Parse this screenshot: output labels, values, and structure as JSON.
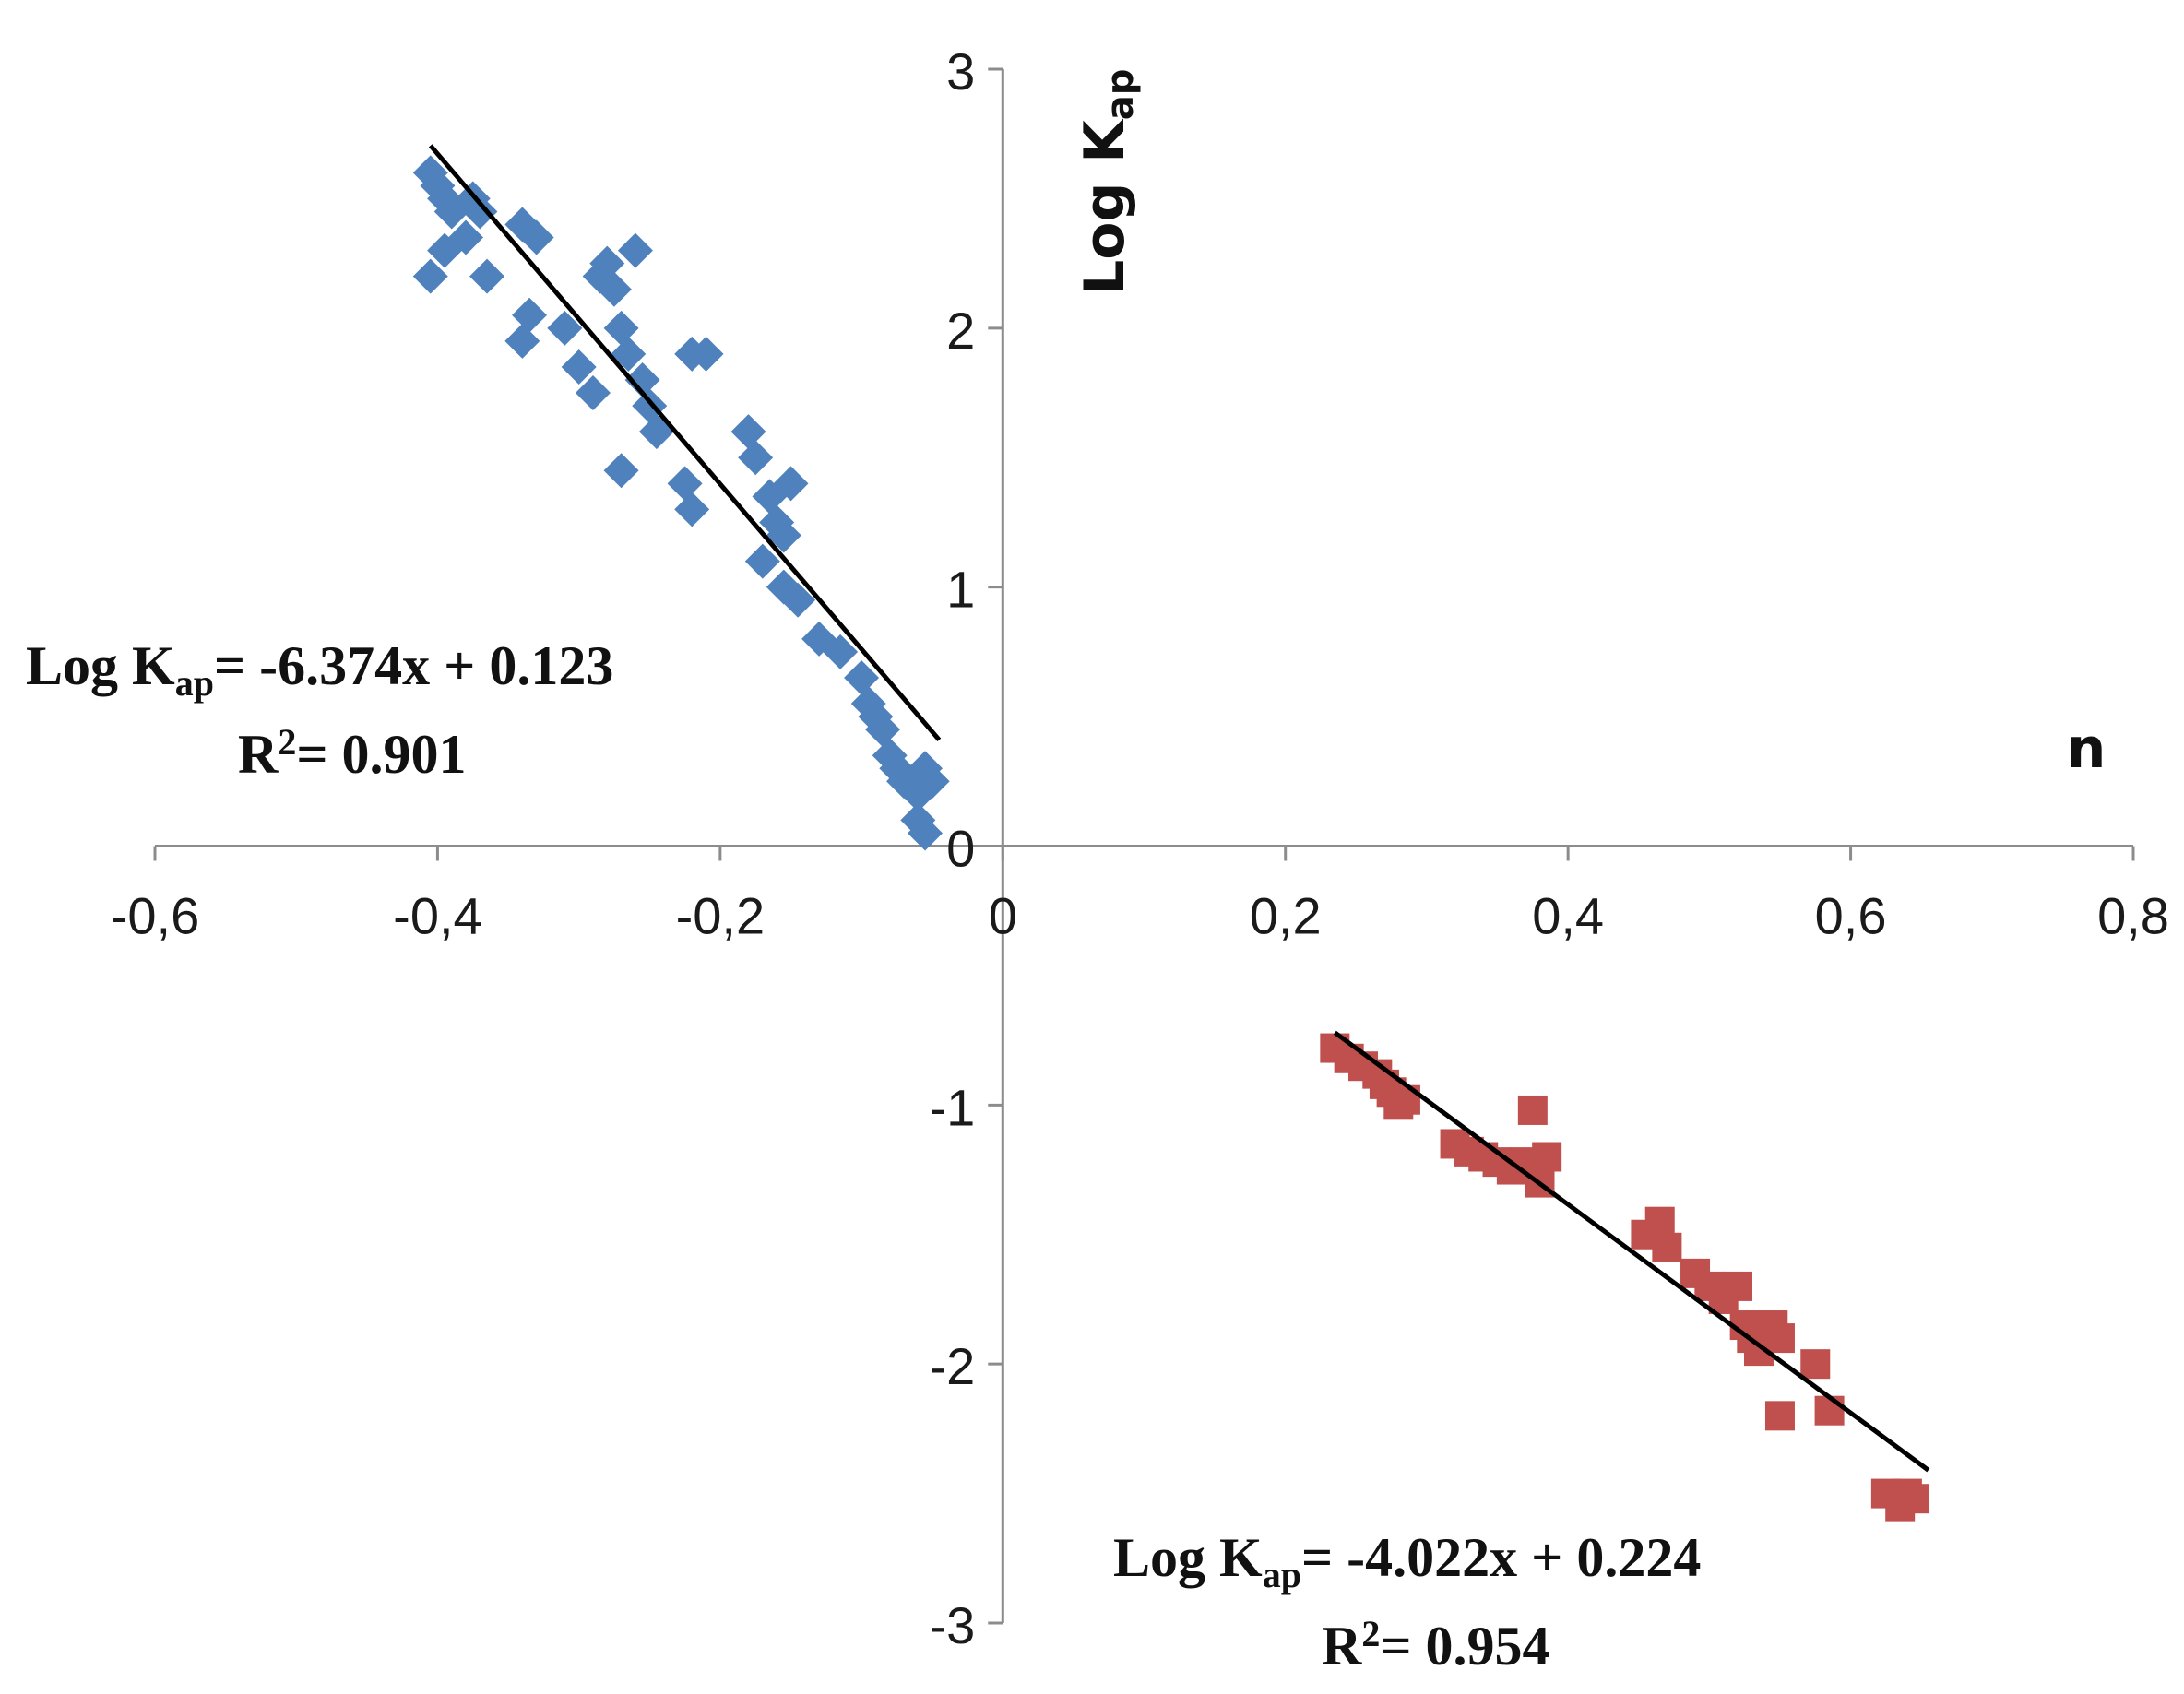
{
  "chart_data": {
    "type": "scatter",
    "title": "",
    "xlabel": "n",
    "ylabel": "Log K",
    "ylabel_sub": "ap",
    "xlim": [
      -0.6,
      0.8
    ],
    "ylim": [
      -3,
      3
    ],
    "x_ticks": [
      -0.6,
      -0.4,
      -0.2,
      0,
      0.2,
      0.4,
      0.6,
      0.8
    ],
    "x_tick_labels": [
      "-0,6",
      "-0,4",
      "-0,2",
      "0",
      "0,2",
      "0,4",
      "0,6",
      "0,8"
    ],
    "y_ticks": [
      -3,
      -2,
      -1,
      0,
      1,
      2,
      3
    ],
    "y_tick_labels": [
      "-3",
      "-2",
      "-1",
      "0",
      "1",
      "2",
      "3"
    ],
    "grid": false,
    "legend": "none",
    "series": [
      {
        "marker": "diamond",
        "color": "#4f81bd",
        "points": [
          [
            -0.405,
            2.6
          ],
          [
            -0.4,
            2.55
          ],
          [
            -0.395,
            2.5
          ],
          [
            -0.39,
            2.45
          ],
          [
            -0.405,
            2.2
          ],
          [
            -0.395,
            2.3
          ],
          [
            -0.38,
            2.35
          ],
          [
            -0.375,
            2.5
          ],
          [
            -0.37,
            2.45
          ],
          [
            -0.365,
            2.2
          ],
          [
            -0.34,
            2.4
          ],
          [
            -0.33,
            2.35
          ],
          [
            -0.34,
            1.95
          ],
          [
            -0.335,
            2.05
          ],
          [
            -0.31,
            2.0
          ],
          [
            -0.3,
            1.85
          ],
          [
            -0.29,
            1.75
          ],
          [
            -0.285,
            2.2
          ],
          [
            -0.28,
            2.25
          ],
          [
            -0.275,
            2.15
          ],
          [
            -0.27,
            2.0
          ],
          [
            -0.265,
            1.9
          ],
          [
            -0.26,
            2.3
          ],
          [
            -0.255,
            1.8
          ],
          [
            -0.25,
            1.7
          ],
          [
            -0.245,
            1.6
          ],
          [
            -0.27,
            1.45
          ],
          [
            -0.225,
            1.4
          ],
          [
            -0.22,
            1.3
          ],
          [
            -0.22,
            1.9
          ],
          [
            -0.21,
            1.9
          ],
          [
            -0.18,
            1.6
          ],
          [
            -0.175,
            1.5
          ],
          [
            -0.165,
            1.35
          ],
          [
            -0.16,
            1.25
          ],
          [
            -0.15,
            1.4
          ],
          [
            -0.155,
            1.2
          ],
          [
            -0.17,
            1.1
          ],
          [
            -0.155,
            1.0
          ],
          [
            -0.145,
            0.95
          ],
          [
            -0.13,
            0.8
          ],
          [
            -0.115,
            0.75
          ],
          [
            -0.1,
            0.65
          ],
          [
            -0.095,
            0.55
          ],
          [
            -0.09,
            0.5
          ],
          [
            -0.085,
            0.45
          ],
          [
            -0.08,
            0.35
          ],
          [
            -0.075,
            0.3
          ],
          [
            -0.07,
            0.25
          ],
          [
            -0.06,
            0.2
          ],
          [
            -0.055,
            0.3
          ],
          [
            -0.05,
            0.25
          ],
          [
            -0.06,
            0.1
          ],
          [
            -0.055,
            0.05
          ]
        ],
        "trendline": {
          "x": [
            -0.405,
            -0.045
          ],
          "y": [
            2.705,
            0.41
          ]
        }
      },
      {
        "marker": "square",
        "color": "#c0504d",
        "points": [
          [
            0.235,
            -0.78
          ],
          [
            0.245,
            -0.82
          ],
          [
            0.255,
            -0.85
          ],
          [
            0.265,
            -0.88
          ],
          [
            0.27,
            -0.92
          ],
          [
            0.275,
            -0.95
          ],
          [
            0.28,
            -1.0
          ],
          [
            0.285,
            -0.98
          ],
          [
            0.32,
            -1.15
          ],
          [
            0.33,
            -1.18
          ],
          [
            0.34,
            -1.2
          ],
          [
            0.35,
            -1.22
          ],
          [
            0.36,
            -1.25
          ],
          [
            0.37,
            -1.22
          ],
          [
            0.375,
            -1.02
          ],
          [
            0.385,
            -1.2
          ],
          [
            0.38,
            -1.3
          ],
          [
            0.455,
            -1.5
          ],
          [
            0.465,
            -1.45
          ],
          [
            0.47,
            -1.55
          ],
          [
            0.49,
            -1.65
          ],
          [
            0.5,
            -1.7
          ],
          [
            0.51,
            -1.75
          ],
          [
            0.52,
            -1.7
          ],
          [
            0.525,
            -1.85
          ],
          [
            0.53,
            -1.9
          ],
          [
            0.535,
            -1.95
          ],
          [
            0.545,
            -1.85
          ],
          [
            0.55,
            -1.9
          ],
          [
            0.55,
            -2.2
          ],
          [
            0.575,
            -2.0
          ],
          [
            0.585,
            -2.18
          ],
          [
            0.625,
            -2.5
          ],
          [
            0.635,
            -2.55
          ],
          [
            0.64,
            -2.5
          ],
          [
            0.645,
            -2.52
          ]
        ],
        "trendline": {
          "x": [
            0.235,
            0.655
          ],
          "y": [
            -0.72,
            -2.41
          ]
        }
      }
    ],
    "annotations": [
      {
        "anchor": "upper-left-series",
        "line1_main": "Log K",
        "line1_sub": "ap",
        "line1_rest": "= -6.374x + 0.123",
        "line2_main": "R",
        "line2_sup": "2",
        "line2_rest": "= 0.901"
      },
      {
        "anchor": "lower-right-series",
        "line1_main": "Log K",
        "line1_sub": "ap",
        "line1_rest": "= -4.022x + 0.224",
        "line2_main": "R",
        "line2_sup": "2",
        "line2_rest": "= 0.954"
      }
    ]
  }
}
